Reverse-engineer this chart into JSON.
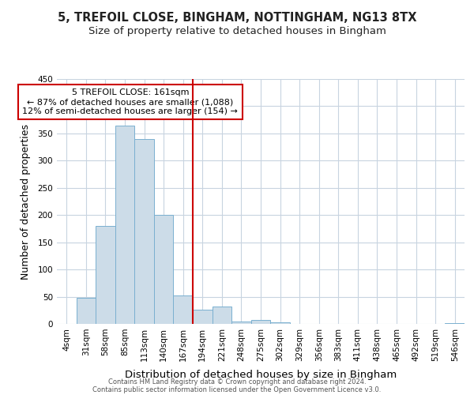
{
  "title_line1": "5, TREFOIL CLOSE, BINGHAM, NOTTINGHAM, NG13 8TX",
  "title_line2": "Size of property relative to detached houses in Bingham",
  "xlabel": "Distribution of detached houses by size in Bingham",
  "ylabel": "Number of detached properties",
  "bar_labels": [
    "4sqm",
    "31sqm",
    "58sqm",
    "85sqm",
    "113sqm",
    "140sqm",
    "167sqm",
    "194sqm",
    "221sqm",
    "248sqm",
    "275sqm",
    "302sqm",
    "329sqm",
    "356sqm",
    "383sqm",
    "411sqm",
    "438sqm",
    "465sqm",
    "492sqm",
    "519sqm",
    "546sqm"
  ],
  "bar_values": [
    0,
    48,
    180,
    365,
    340,
    200,
    52,
    26,
    32,
    5,
    7,
    3,
    0,
    0,
    0,
    0,
    0,
    0,
    0,
    0,
    2
  ],
  "bar_color": "#ccdce8",
  "bar_edgecolor": "#7ab0d0",
  "bar_linewidth": 0.7,
  "vline_x_index": 6,
  "vline_color": "#cc0000",
  "vline_linewidth": 1.5,
  "annotation_text": "5 TREFOIL CLOSE: 161sqm\n← 87% of detached houses are smaller (1,088)\n12% of semi-detached houses are larger (154) →",
  "annotation_box_edgecolor": "#cc0000",
  "annotation_box_facecolor": "white",
  "ylim": [
    0,
    450
  ],
  "yticks": [
    0,
    50,
    100,
    150,
    200,
    250,
    300,
    350,
    400,
    450
  ],
  "grid_color": "#c8d4e0",
  "background_color": "#ffffff",
  "axes_background": "#ffffff",
  "footer_line1": "Contains HM Land Registry data © Crown copyright and database right 2024.",
  "footer_line2": "Contains public sector information licensed under the Open Government Licence v3.0.",
  "title_fontsize": 10.5,
  "subtitle_fontsize": 9.5,
  "tick_fontsize": 7.5,
  "ylabel_fontsize": 9,
  "xlabel_fontsize": 9.5,
  "footer_fontsize": 6.0,
  "annotation_fontsize": 8.0
}
